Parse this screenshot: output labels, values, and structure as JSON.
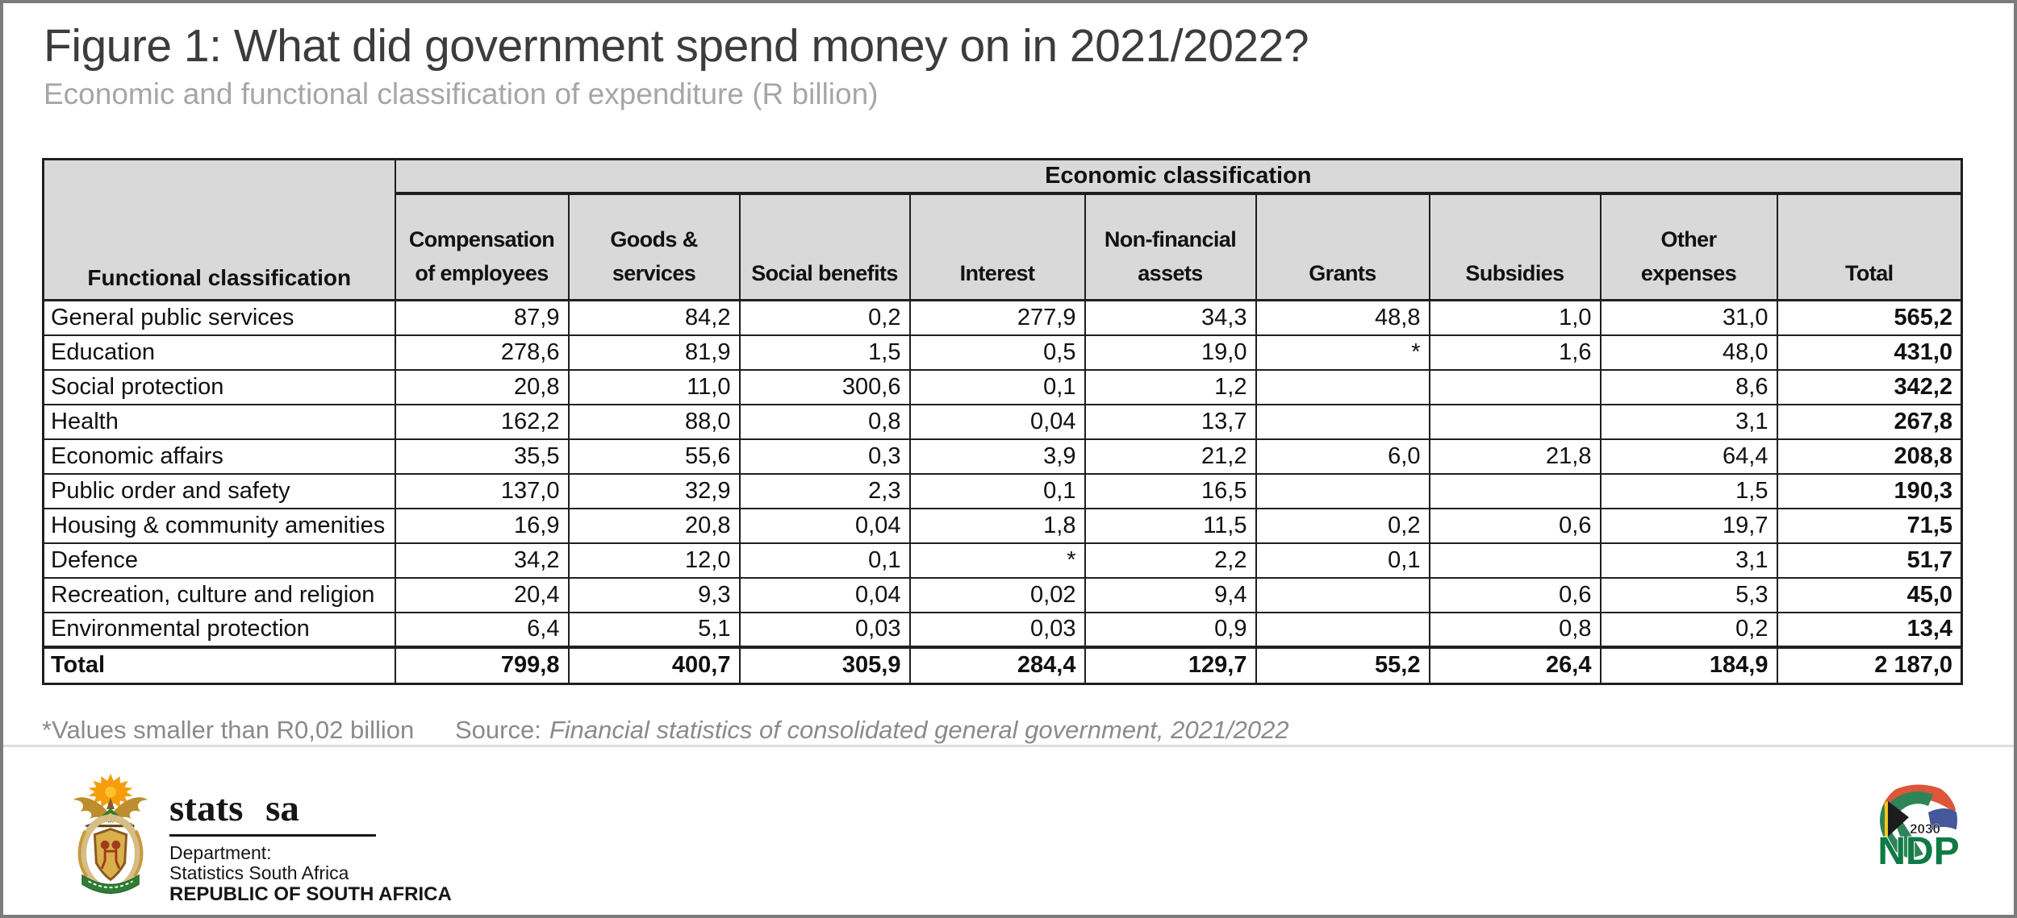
{
  "title": "Figure 1: What did government spend money on in 2021/2022?",
  "subtitle": "Economic and functional classification of expenditure (R billion)",
  "table": {
    "corner_header": "Functional classification",
    "span_header": "Economic classification",
    "columns": [
      [
        "Compensation",
        "of employees"
      ],
      [
        "Goods &",
        "services"
      ],
      [
        "Social benefits"
      ],
      [
        "Interest"
      ],
      [
        "Non-financial",
        "assets"
      ],
      [
        "Grants"
      ],
      [
        "Subsidies"
      ],
      [
        "Other",
        "expenses"
      ],
      [
        "Total"
      ]
    ],
    "rows": [
      {
        "label": "General public services",
        "values": [
          "87,9",
          "84,2",
          "0,2",
          "277,9",
          "34,3",
          "48,8",
          "1,0",
          "31,0",
          "565,2"
        ]
      },
      {
        "label": "Education",
        "values": [
          "278,6",
          "81,9",
          "1,5",
          "0,5",
          "19,0",
          "*",
          "1,6",
          "48,0",
          "431,0"
        ]
      },
      {
        "label": "Social protection",
        "values": [
          "20,8",
          "11,0",
          "300,6",
          "0,1",
          "1,2",
          "",
          "",
          "8,6",
          "342,2"
        ]
      },
      {
        "label": "Health",
        "values": [
          "162,2",
          "88,0",
          "0,8",
          "0,04",
          "13,7",
          "",
          "",
          "3,1",
          "267,8"
        ]
      },
      {
        "label": "Economic affairs",
        "values": [
          "35,5",
          "55,6",
          "0,3",
          "3,9",
          "21,2",
          "6,0",
          "21,8",
          "64,4",
          "208,8"
        ]
      },
      {
        "label": "Public order and safety",
        "values": [
          "137,0",
          "32,9",
          "2,3",
          "0,1",
          "16,5",
          "",
          "",
          "1,5",
          "190,3"
        ]
      },
      {
        "label": "Housing & community amenities",
        "values": [
          "16,9",
          "20,8",
          "0,04",
          "1,8",
          "11,5",
          "0,2",
          "0,6",
          "19,7",
          "71,5"
        ]
      },
      {
        "label": "Defence",
        "values": [
          "34,2",
          "12,0",
          "0,1",
          "*",
          "2,2",
          "0,1",
          "",
          "3,1",
          "51,7"
        ]
      },
      {
        "label": "Recreation, culture and religion",
        "values": [
          "20,4",
          "9,3",
          "0,04",
          "0,02",
          "9,4",
          "",
          "0,6",
          "5,3",
          "45,0"
        ]
      },
      {
        "label": "Environmental protection",
        "values": [
          "6,4",
          "5,1",
          "0,03",
          "0,03",
          "0,9",
          "",
          "0,8",
          "0,2",
          "13,4"
        ]
      }
    ],
    "total_row": {
      "label": "Total",
      "values": [
        "799,8",
        "400,7",
        "305,9",
        "284,4",
        "129,7",
        "55,2",
        "26,4",
        "184,9",
        "2 187,0"
      ]
    }
  },
  "footer": {
    "footnote": "*Values smaller than R0,02 billion",
    "source_label": "Source:",
    "source_text": "Financial statistics of consolidated general government, 2021/2022"
  },
  "logos": {
    "statssa": {
      "wordmark": "stats sa",
      "dept_line1": "Department:",
      "dept_line2": "Statistics South Africa",
      "dept_line3": "REPUBLIC OF SOUTH AFRICA"
    },
    "ndp": {
      "year": "2030",
      "acronym": "NDP"
    }
  },
  "colors": {
    "header_bg": "#d9d9d9",
    "table_border": "#1f1f1f",
    "title_text": "#3c3c3c",
    "subtitle_text": "#a6a6a6",
    "footnote_text": "#8a8a8a",
    "frame_border": "#7b7b7b",
    "ndp_green": "#0e7a46",
    "ndp_red": "#dd5639",
    "ndp_blue": "#44589b",
    "ndp_yellow": "#f7c51e",
    "arms_gold": "#bd8d2e",
    "arms_green": "#2f7d33",
    "arms_orange": "#f59d0c"
  },
  "chart_data": {
    "type": "table",
    "title": "Figure 1: What did government spend money on in 2021/2022?",
    "subtitle": "Economic and functional classification of expenditure (R billion)",
    "unit": "R billion",
    "categories": [
      "General public services",
      "Education",
      "Social protection",
      "Health",
      "Economic affairs",
      "Public order and safety",
      "Housing & community amenities",
      "Defence",
      "Recreation, culture and religion",
      "Environmental protection"
    ],
    "series": [
      {
        "name": "Compensation of employees",
        "values": [
          87.9,
          278.6,
          20.8,
          162.2,
          35.5,
          137.0,
          16.9,
          34.2,
          20.4,
          6.4
        ],
        "total": 799.8
      },
      {
        "name": "Goods & services",
        "values": [
          84.2,
          81.9,
          11.0,
          88.0,
          55.6,
          32.9,
          20.8,
          12.0,
          9.3,
          5.1
        ],
        "total": 400.7
      },
      {
        "name": "Social benefits",
        "values": [
          0.2,
          1.5,
          300.6,
          0.8,
          0.3,
          2.3,
          0.04,
          0.1,
          0.04,
          0.03
        ],
        "total": 305.9
      },
      {
        "name": "Interest",
        "values": [
          277.9,
          0.5,
          0.1,
          0.04,
          3.9,
          0.1,
          1.8,
          "*",
          0.02,
          0.03
        ],
        "total": 284.4
      },
      {
        "name": "Non-financial assets",
        "values": [
          34.3,
          19.0,
          1.2,
          13.7,
          21.2,
          16.5,
          11.5,
          2.2,
          9.4,
          0.9
        ],
        "total": 129.7
      },
      {
        "name": "Grants",
        "values": [
          48.8,
          "*",
          null,
          null,
          6.0,
          null,
          0.2,
          0.1,
          null,
          null
        ],
        "total": 55.2
      },
      {
        "name": "Subsidies",
        "values": [
          1.0,
          1.6,
          null,
          null,
          21.8,
          null,
          0.6,
          null,
          0.6,
          0.8
        ],
        "total": 26.4
      },
      {
        "name": "Other expenses",
        "values": [
          31.0,
          48.0,
          8.6,
          3.1,
          64.4,
          1.5,
          19.7,
          3.1,
          5.3,
          0.2
        ],
        "total": 184.9
      },
      {
        "name": "Total",
        "values": [
          565.2,
          431.0,
          342.2,
          267.8,
          208.8,
          190.3,
          71.5,
          51.7,
          45.0,
          13.4
        ],
        "total": 2187.0
      }
    ],
    "footnote": "*Values smaller than R0,02 billion",
    "source": "Financial statistics of consolidated general government, 2021/2022"
  }
}
